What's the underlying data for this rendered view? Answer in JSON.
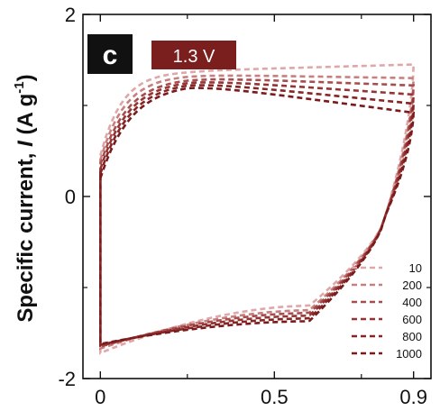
{
  "chart_data": {
    "type": "line",
    "panel_label": "c",
    "voltage_badge": "1.3 V",
    "ylabel_parts": [
      "Specific current, ",
      "I",
      " (A g",
      "-1",
      ")"
    ],
    "xlabel": "",
    "xlim": [
      -0.05,
      0.95
    ],
    "ylim": [
      -2,
      2
    ],
    "x_ticks": [
      0,
      0.5,
      0.9
    ],
    "x_tick_labels": [
      "0",
      "0.5",
      "0.9"
    ],
    "y_ticks": [
      -2,
      0,
      2
    ],
    "y_tick_labels": [
      "-2",
      "0",
      "2"
    ],
    "legend_position": "bottom-right",
    "series": [
      {
        "name": "10",
        "color": "#dfa7a7",
        "upper_start": 0.45,
        "upper_end": 1.45,
        "lower_start": -1.72,
        "lower_mid": -1.2,
        "plateau": 1.38,
        "knee": 0.18
      },
      {
        "name": "200",
        "color": "#c87f7f",
        "upper_start": 0.4,
        "upper_end": 1.3,
        "lower_start": -1.67,
        "lower_mid": -1.25,
        "plateau": 1.34,
        "knee": 0.2
      },
      {
        "name": "400",
        "color": "#a84d4d",
        "upper_start": 0.35,
        "upper_end": 1.22,
        "lower_start": -1.65,
        "lower_mid": -1.28,
        "plateau": 1.31,
        "knee": 0.22
      },
      {
        "name": "600",
        "color": "#943434",
        "upper_start": 0.3,
        "upper_end": 1.12,
        "lower_start": -1.64,
        "lower_mid": -1.31,
        "plateau": 1.29,
        "knee": 0.23
      },
      {
        "name": "800",
        "color": "#862525",
        "upper_start": 0.25,
        "upper_end": 1.02,
        "lower_start": -1.63,
        "lower_mid": -1.34,
        "plateau": 1.27,
        "knee": 0.24
      },
      {
        "name": "1000",
        "color": "#7a1a1a",
        "upper_start": 0.2,
        "upper_end": 0.92,
        "lower_start": -1.62,
        "lower_mid": -1.37,
        "plateau": 1.25,
        "knee": 0.25
      }
    ]
  }
}
